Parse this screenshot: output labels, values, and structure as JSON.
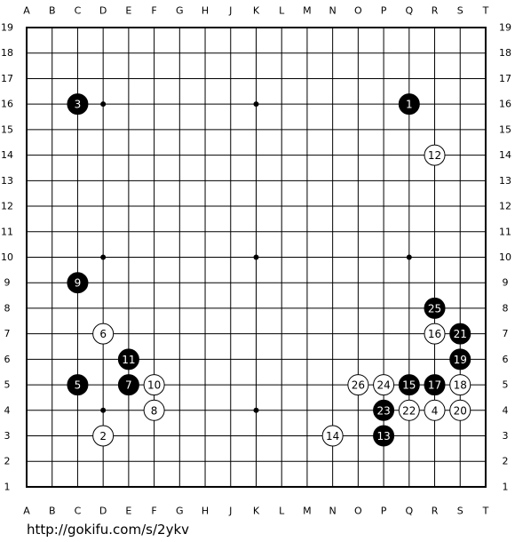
{
  "board": {
    "columns": [
      "A",
      "B",
      "C",
      "D",
      "E",
      "F",
      "G",
      "H",
      "J",
      "K",
      "L",
      "M",
      "N",
      "O",
      "P",
      "Q",
      "R",
      "S",
      "T"
    ],
    "rows": [
      19,
      18,
      17,
      16,
      15,
      14,
      13,
      12,
      11,
      10,
      9,
      8,
      7,
      6,
      5,
      4,
      3,
      2,
      1
    ],
    "stones": [
      {
        "number": "1",
        "color": "black",
        "col": "Q",
        "row": 16
      },
      {
        "number": "2",
        "color": "white",
        "col": "D",
        "row": 3
      },
      {
        "number": "3",
        "color": "black",
        "col": "C",
        "row": 16
      },
      {
        "number": "4",
        "color": "white",
        "col": "R",
        "row": 4
      },
      {
        "number": "5",
        "color": "black",
        "col": "C",
        "row": 5
      },
      {
        "number": "6",
        "color": "white",
        "col": "D",
        "row": 7
      },
      {
        "number": "7",
        "color": "black",
        "col": "E",
        "row": 5
      },
      {
        "number": "8",
        "color": "white",
        "col": "F",
        "row": 4
      },
      {
        "number": "9",
        "color": "black",
        "col": "C",
        "row": 9
      },
      {
        "number": "10",
        "color": "white",
        "col": "F",
        "row": 5
      },
      {
        "number": "11",
        "color": "black",
        "col": "E",
        "row": 6
      },
      {
        "number": "12",
        "color": "white",
        "col": "R",
        "row": 14
      },
      {
        "number": "13",
        "color": "black",
        "col": "P",
        "row": 3
      },
      {
        "number": "14",
        "color": "white",
        "col": "N",
        "row": 3
      },
      {
        "number": "15",
        "color": "black",
        "col": "Q",
        "row": 5
      },
      {
        "number": "16",
        "color": "white",
        "col": "R",
        "row": 7
      },
      {
        "number": "17",
        "color": "black",
        "col": "R",
        "row": 5
      },
      {
        "number": "18",
        "color": "white",
        "col": "S",
        "row": 5
      },
      {
        "number": "19",
        "color": "black",
        "col": "S",
        "row": 6
      },
      {
        "number": "20",
        "color": "white",
        "col": "S",
        "row": 4
      },
      {
        "number": "21",
        "color": "black",
        "col": "S",
        "row": 7
      },
      {
        "number": "22",
        "color": "white",
        "col": "Q",
        "row": 4
      },
      {
        "number": "23",
        "color": "black",
        "col": "P",
        "row": 4
      },
      {
        "number": "24",
        "color": "white",
        "col": "P",
        "row": 5
      },
      {
        "number": "25",
        "color": "black",
        "col": "R",
        "row": 8
      },
      {
        "number": "26",
        "color": "white",
        "col": "O",
        "row": 5
      }
    ]
  },
  "footer": {
    "url": "http://gokifu.com/s/2ykv"
  }
}
